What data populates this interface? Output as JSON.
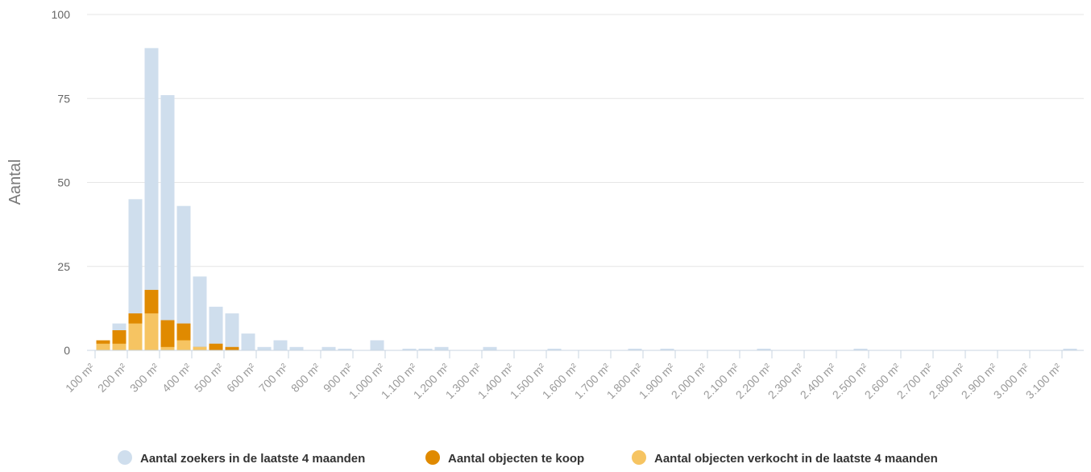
{
  "chart_data": {
    "type": "bar",
    "ylabel": "Aantal",
    "xlabel": "",
    "ylim": [
      0,
      100
    ],
    "yticks": [
      0,
      25,
      50,
      75,
      100
    ],
    "grid": true,
    "legend_position": "bottom",
    "x_tick_labels": [
      "100 m²",
      "200 m²",
      "300 m²",
      "400 m²",
      "500 m²",
      "600 m²",
      "700 m²",
      "800 m²",
      "900 m²",
      "1.000 m²",
      "1.100 m²",
      "1.200 m²",
      "1.300 m²",
      "1.400 m²",
      "1.500 m²",
      "1.600 m²",
      "1.700 m²",
      "1.800 m²",
      "1.900 m²",
      "2.000 m²",
      "2.100 m²",
      "2.200 m²",
      "2.300 m²",
      "2.400 m²",
      "2.500 m²",
      "2.600 m²",
      "2.700 m²",
      "2.800 m²",
      "2.900 m²",
      "3.000 m²",
      "3.100 m²"
    ],
    "bin_start": 100,
    "bin_width": 50,
    "series": [
      {
        "name": "Aantal zoekers in de laatste 4 maanden",
        "color": "#cfdeed",
        "values": [
          3,
          8,
          45,
          90,
          76,
          43,
          22,
          13,
          11,
          5,
          1,
          3,
          1,
          0,
          1,
          0.5,
          0,
          3,
          0,
          0.5,
          0.5,
          1,
          0,
          0,
          1,
          0,
          0,
          0,
          0.5,
          0,
          0,
          0,
          0,
          0.5,
          0,
          0.5,
          0,
          0,
          0,
          0,
          0,
          0.5,
          0,
          0,
          0,
          0,
          0,
          0.5,
          0,
          0,
          0,
          0,
          0,
          0,
          0,
          0,
          0,
          0,
          0,
          0,
          0.5
        ]
      },
      {
        "name": "Aantal objecten te koop",
        "color": "#e08a00",
        "values": [
          3,
          6,
          11,
          18,
          9,
          8,
          1,
          2,
          1,
          0,
          0,
          0,
          0,
          0,
          0,
          0,
          0,
          0,
          0,
          0,
          0,
          0,
          0,
          0,
          0,
          0,
          0,
          0,
          0,
          0,
          0,
          0,
          0,
          0,
          0,
          0,
          0,
          0,
          0,
          0,
          0,
          0,
          0,
          0,
          0,
          0,
          0,
          0,
          0,
          0,
          0,
          0,
          0,
          0,
          0,
          0,
          0,
          0,
          0,
          0,
          0
        ]
      },
      {
        "name": "Aantal objecten verkocht in de laatste 4 maanden",
        "color": "#f6c462",
        "values": [
          2,
          2,
          8,
          11,
          1,
          3,
          1,
          0,
          0,
          0,
          0,
          0,
          0,
          0,
          0,
          0,
          0,
          0,
          0,
          0,
          0,
          0,
          0,
          0,
          0,
          0,
          0,
          0,
          0,
          0,
          0,
          0,
          0,
          0,
          0,
          0,
          0,
          0,
          0,
          0,
          0,
          0,
          0,
          0,
          0,
          0,
          0,
          0,
          0,
          0,
          0,
          0,
          0,
          0,
          0,
          0,
          0,
          0,
          0,
          0,
          0
        ]
      }
    ]
  }
}
